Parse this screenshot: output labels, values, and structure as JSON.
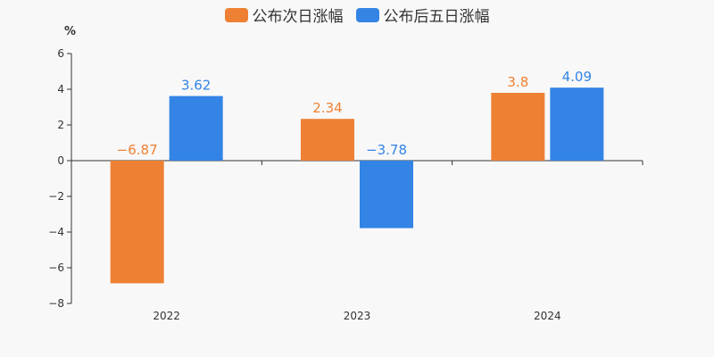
{
  "chart_data": {
    "type": "bar",
    "categories": [
      "2022",
      "2023",
      "2024"
    ],
    "series": [
      {
        "name": "公布次日涨幅",
        "values": [
          -6.87,
          2.34,
          3.8
        ],
        "labels": [
          "−6.87",
          "2.34",
          "3.8"
        ],
        "color": "#ee8033"
      },
      {
        "name": "公布后五日涨幅",
        "values": [
          3.62,
          -3.78,
          4.09
        ],
        "labels": [
          "3.62",
          "−3.78",
          "4.09"
        ],
        "color": "#3384e5"
      }
    ],
    "ylabel": "%",
    "ylim": [
      -8,
      6
    ],
    "yticks": [
      6,
      4,
      2,
      0,
      -2,
      -4,
      -6,
      -8
    ],
    "ytick_labels": [
      "6",
      "4",
      "2",
      "0",
      "−2",
      "−4",
      "−6",
      "−8"
    ],
    "legend": "top-center",
    "grid": false
  }
}
